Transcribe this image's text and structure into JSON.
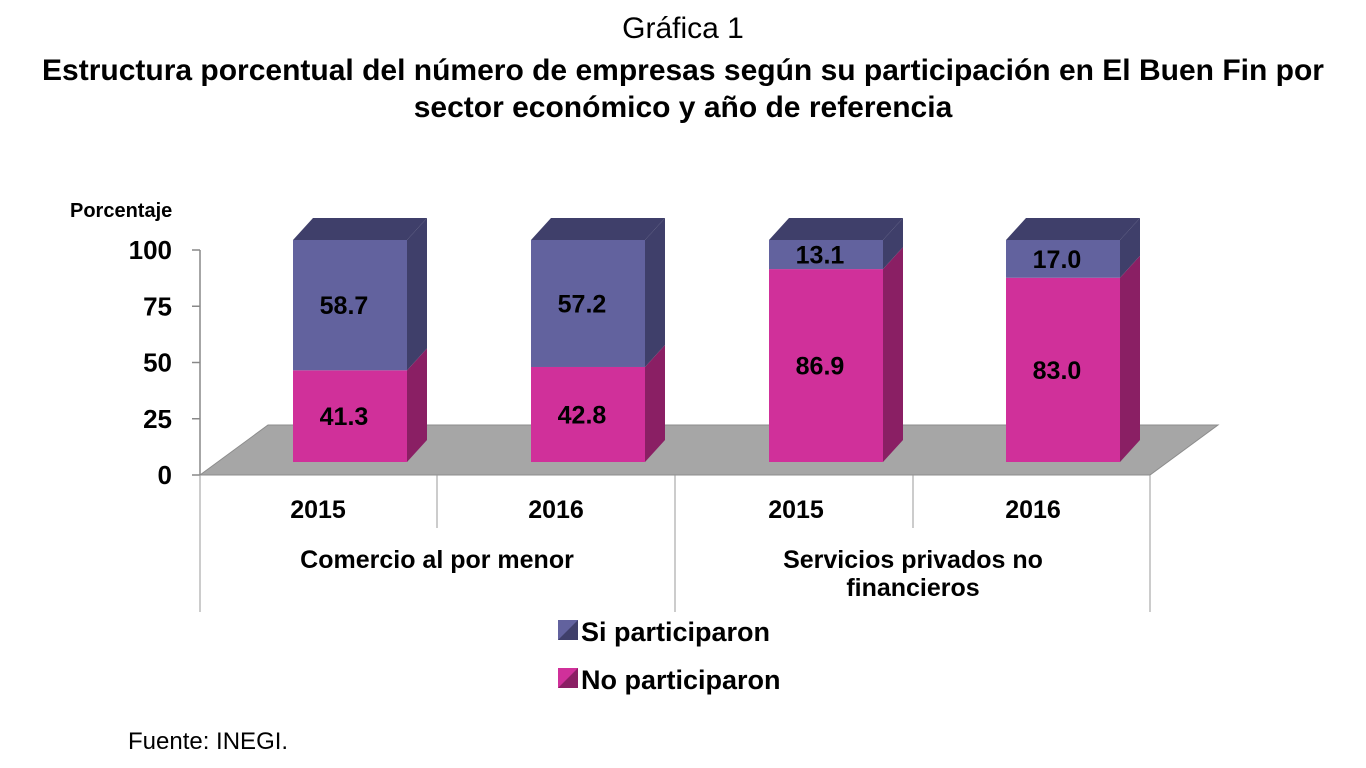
{
  "header": {
    "subtitle": "Gráfica 1",
    "title": "Estructura porcentual del número de empresas según su participación en El Buen Fin por sector económico y año de referencia"
  },
  "footer": {
    "source": "Fuente: INEGI."
  },
  "chart_data": {
    "type": "bar",
    "stacked": true,
    "three_d": true,
    "title": "Estructura porcentual del número de empresas según su participación en El Buen Fin por sector económico y año de referencia",
    "subtitle": "Gráfica 1",
    "ylabel": "Porcentaje",
    "xlabel": "",
    "ylim": [
      0,
      100
    ],
    "yticks": [
      0,
      25,
      50,
      75,
      100
    ],
    "grid": false,
    "categories": [
      "2015",
      "2016",
      "2015",
      "2016"
    ],
    "groups": [
      {
        "label": "Comercio al por menor",
        "label_lines": [
          "Comercio al por menor"
        ],
        "span": [
          0,
          1
        ]
      },
      {
        "label": "Servicios privados no financieros",
        "label_lines": [
          "Servicios privados no",
          "financieros"
        ],
        "span": [
          2,
          3
        ]
      }
    ],
    "series": [
      {
        "name": "No participaron",
        "values": [
          41.3,
          42.8,
          86.9,
          83.0
        ],
        "labels": [
          "41.3",
          "42.8",
          "86.9",
          "83.0"
        ],
        "color": "#D0309A",
        "side_color": "#8A1F64"
      },
      {
        "name": "Si participaron",
        "values": [
          58.7,
          57.2,
          13.1,
          17.0
        ],
        "labels": [
          "58.7",
          "57.2",
          "13.1",
          "17.0"
        ],
        "color": "#62629E",
        "side_color": "#3F3F6A"
      }
    ],
    "legend": {
      "placement": "bottom",
      "entries": [
        "Si participaron",
        "No participaron"
      ]
    },
    "floor_color": "#A6A6A6"
  }
}
